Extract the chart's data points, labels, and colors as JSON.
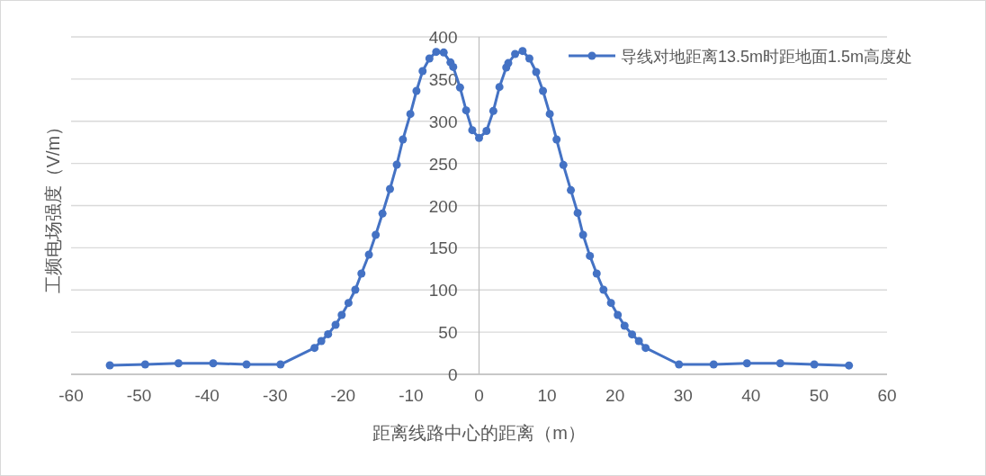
{
  "chart_data": {
    "type": "line",
    "xlabel": "距离线路中心的距离（m）",
    "ylabel": "工频电场强度（V/m）",
    "xlim": [
      -60,
      60
    ],
    "xticks": [
      -60,
      -50,
      -40,
      -30,
      -20,
      -10,
      0,
      10,
      20,
      30,
      40,
      50,
      60
    ],
    "ylim": [
      0,
      400
    ],
    "yticks": [
      0,
      50,
      100,
      150,
      200,
      250,
      300,
      350,
      400
    ],
    "grid": "y",
    "legend": "top right",
    "marker": "circle",
    "line_style": "solid",
    "series": [
      {
        "name": "导线对地距离13.5m时距地面1.5m高度处",
        "color": "#4472c4",
        "x": [
          -54.3,
          -49.1,
          -44.2,
          -39.1,
          -34.2,
          -29.2,
          -24.2,
          -23.2,
          -22.2,
          -21.1,
          -20.2,
          -19.2,
          -18.2,
          -17.3,
          -16.2,
          -15.2,
          -14.2,
          -13.1,
          -12.1,
          -11.2,
          -10.1,
          -9.2,
          -8.3,
          -7.3,
          -6.3,
          -5.2,
          -4.2,
          -3.8,
          -2.8,
          -1.9,
          -1.0,
          0,
          1.1,
          2.1,
          3.0,
          4.0,
          4.3,
          5.3,
          6.4,
          7.4,
          8.4,
          9.4,
          10.4,
          11.4,
          12.4,
          13.5,
          14.5,
          15.3,
          16.3,
          17.3,
          18.3,
          19.4,
          20.4,
          21.4,
          22.5,
          23.5,
          24.5,
          29.4,
          34.5,
          39.4,
          44.3,
          49.3,
          54.4
        ],
        "values": [
          10.7,
          11.7,
          13.1,
          13.1,
          11.7,
          11.7,
          31.3,
          39.5,
          47.6,
          58.7,
          70.4,
          84.6,
          100.3,
          119.5,
          141.9,
          165.3,
          190.6,
          219.7,
          248.5,
          278.4,
          308.6,
          336,
          359.5,
          374.4,
          382.2,
          381.5,
          369.8,
          364.4,
          340,
          312.9,
          289.4,
          280.2,
          288.5,
          312.2,
          340.6,
          363.7,
          369,
          379.7,
          383.3,
          374.4,
          358.4,
          336,
          308.6,
          278.4,
          248.2,
          218.3,
          191.3,
          165.3,
          140.4,
          119.5,
          100.3,
          84.6,
          70.4,
          57.6,
          47.3,
          39.5,
          31.3,
          11.7,
          11.7,
          13.1,
          13.1,
          11.7,
          10.5
        ]
      }
    ]
  }
}
